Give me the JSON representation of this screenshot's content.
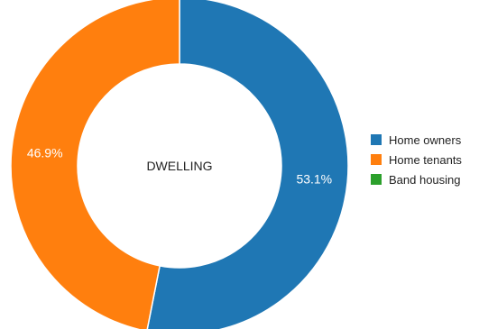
{
  "chart_data": {
    "type": "pie",
    "center_label": "DWELLING",
    "slices": [
      {
        "label": "Home owners",
        "value": 53.1,
        "value_label": "53.1%",
        "color": "#1f77b4"
      },
      {
        "label": "Home tenants",
        "value": 46.9,
        "value_label": "46.9%",
        "color": "#ff7f0e"
      },
      {
        "label": "Band housing",
        "value": 0,
        "value_label": "",
        "color": "#2ca02c"
      }
    ],
    "legend_position": "right"
  }
}
